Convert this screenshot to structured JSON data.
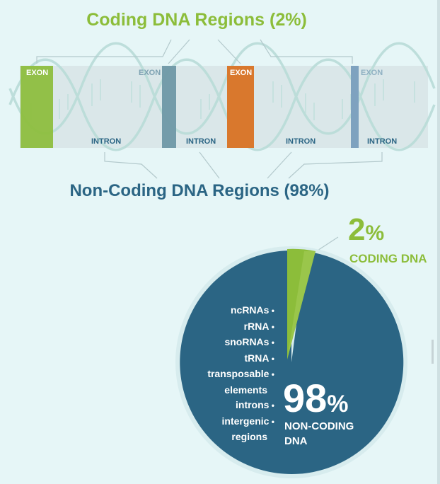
{
  "titles": {
    "coding": "Coding DNA Regions (2%)",
    "noncoding": "Non-Coding DNA Regions (98%)"
  },
  "strip": {
    "exon_label": "EXON",
    "intron_label": "INTRON",
    "colors": {
      "exon_green": "#8cbd3a",
      "exon_teal": "#6f98a7",
      "exon_orange": "#d9782d",
      "exon_blue": "#7ea2bf",
      "strip": "#dae7e9",
      "helix": "#b7d8d5"
    }
  },
  "pie": {
    "coding_percent": "2",
    "noncoding_percent": "98",
    "percent_sign": "%",
    "coding_label": "CODING DNA",
    "noncoding_label": [
      "NON-CODING",
      "DNA"
    ],
    "noncoding_types": [
      "ncRNAs",
      "rRNA",
      "snoRNAs",
      "tRNA",
      "transposable",
      "elements",
      "introns",
      "intergenic",
      "regions"
    ],
    "colors": {
      "coding": "#8cbd3a",
      "noncoding": "#2b6584",
      "ring": "#d7ecee"
    }
  },
  "chart_data": {
    "type": "pie",
    "categories": [
      "CODING DNA",
      "NON-CODING DNA"
    ],
    "values": [
      2,
      98
    ]
  }
}
